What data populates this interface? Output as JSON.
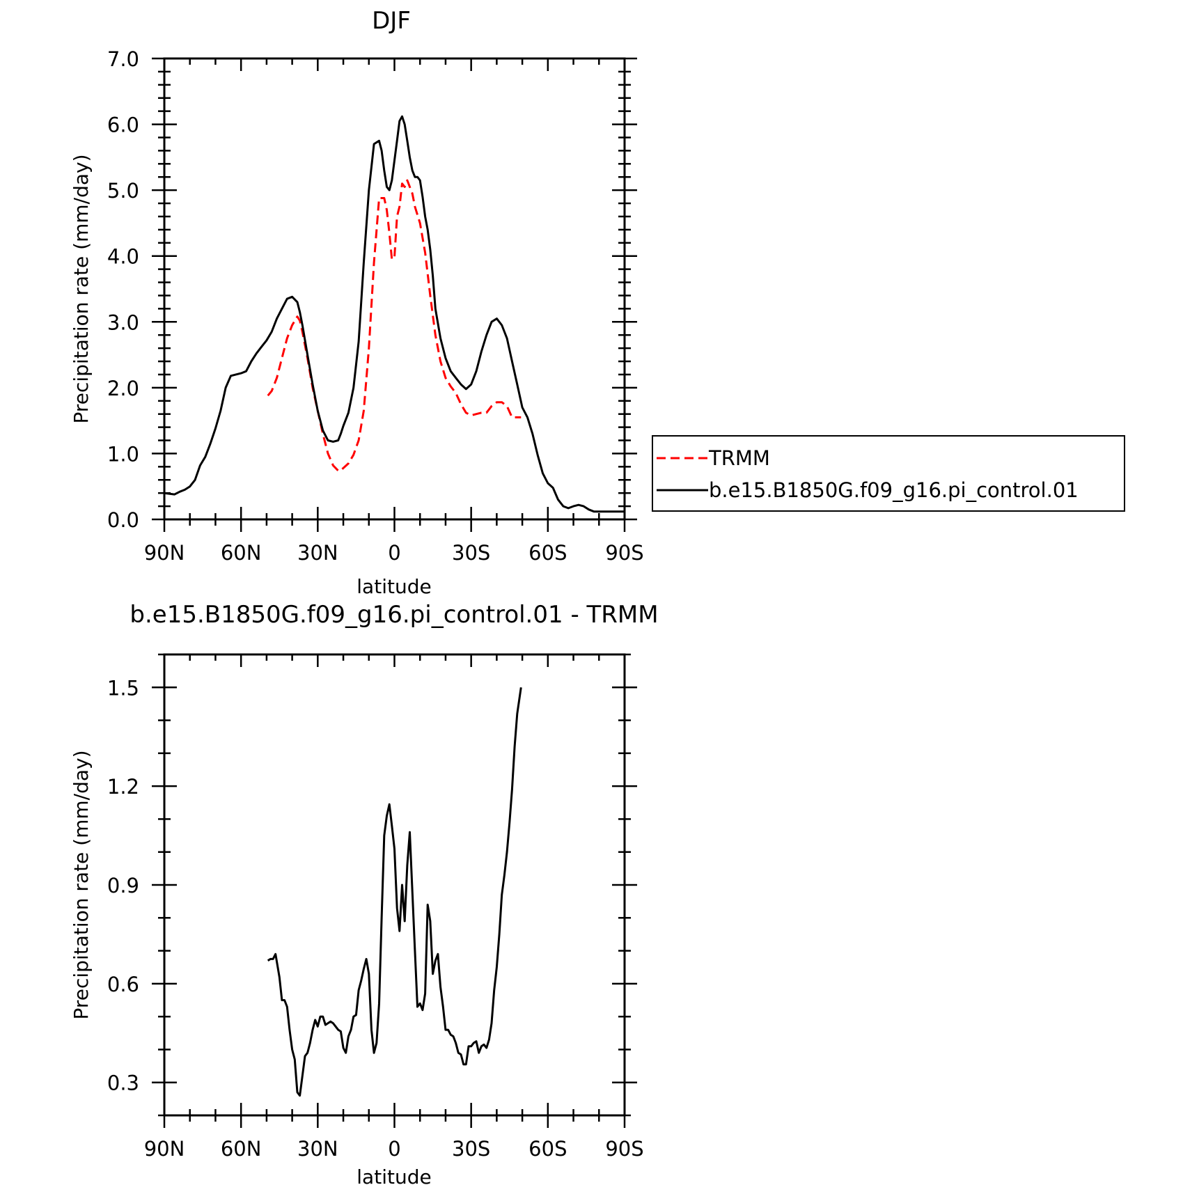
{
  "chart_data": [
    {
      "type": "line",
      "title": "DJF",
      "xlabel": "latitude",
      "ylabel": "Precipitation rate (mm/day)",
      "xlim": [
        90,
        -90
      ],
      "ylim": [
        0,
        7
      ],
      "x_ticks": [
        90,
        60,
        30,
        0,
        -30,
        -60,
        -90
      ],
      "x_tick_labels": [
        "90N",
        "60N",
        "30N",
        "0",
        "30S",
        "60S",
        "90S"
      ],
      "y_ticks": [
        0,
        1,
        2,
        3,
        4,
        5,
        6,
        7
      ],
      "y_tick_labels": [
        "0.0",
        "1.0",
        "2.0",
        "3.0",
        "4.0",
        "5.0",
        "6.0",
        "7.0"
      ],
      "grid": false,
      "legend": "right",
      "series": [
        {
          "name": "TRMM",
          "color": "#ff0000",
          "dash": "dashed",
          "x": [
            49.5,
            48,
            46,
            44,
            42,
            40,
            38,
            37,
            36,
            34,
            32,
            30,
            28,
            26,
            24,
            22,
            21,
            20,
            18,
            16,
            14,
            12,
            10,
            8,
            6,
            4,
            3,
            2,
            1,
            0,
            -1,
            -2,
            -3,
            -4,
            -5,
            -6,
            -7,
            -8,
            -10,
            -12,
            -14,
            -16,
            -18,
            -20,
            -22,
            -24,
            -26,
            -28,
            -30,
            -32,
            -34,
            -36,
            -38,
            -40,
            -42,
            -44,
            -46,
            -48,
            -49.5
          ],
          "y": [
            1.88,
            1.95,
            2.15,
            2.45,
            2.75,
            2.95,
            3.08,
            3.02,
            2.85,
            2.45,
            2.0,
            1.65,
            1.3,
            1.0,
            0.82,
            0.74,
            0.74,
            0.78,
            0.85,
            0.98,
            1.2,
            1.65,
            2.6,
            3.9,
            4.88,
            4.88,
            4.7,
            4.35,
            3.95,
            3.98,
            4.6,
            4.75,
            5.1,
            5.05,
            5.15,
            5.05,
            4.95,
            4.75,
            4.5,
            4.05,
            3.4,
            2.8,
            2.4,
            2.15,
            2.02,
            1.92,
            1.75,
            1.62,
            1.58,
            1.6,
            1.62,
            1.62,
            1.72,
            1.78,
            1.78,
            1.72,
            1.55,
            1.55,
            1.55
          ]
        },
        {
          "name": "b.e15.B1850G.f09_g16.pi_control.01",
          "color": "#000000",
          "dash": "solid",
          "x": [
            90,
            86,
            84,
            82,
            80,
            78,
            76,
            74,
            72,
            70,
            68,
            66,
            64,
            62,
            60,
            58,
            56,
            54,
            52,
            50,
            48,
            46,
            44,
            42,
            40,
            38,
            37,
            36,
            34,
            32,
            30,
            28,
            26,
            24,
            22,
            21,
            20,
            18,
            16,
            14,
            12,
            10,
            8,
            6,
            5,
            4,
            3,
            2,
            1,
            0,
            -1,
            -2,
            -3,
            -4,
            -5,
            -6,
            -7,
            -8,
            -9,
            -10,
            -11,
            -12,
            -13,
            -14,
            -15,
            -16,
            -18,
            -20,
            -22,
            -24,
            -26,
            -28,
            -30,
            -32,
            -34,
            -36,
            -38,
            -40,
            -42,
            -44,
            -46,
            -48,
            -50,
            -52,
            -54,
            -56,
            -58,
            -60,
            -62,
            -64,
            -66,
            -68,
            -70,
            -72,
            -74,
            -76,
            -78,
            -80,
            -82,
            -84,
            -86,
            -88,
            -90
          ],
          "y": [
            0.4,
            0.38,
            0.42,
            0.45,
            0.5,
            0.6,
            0.82,
            0.95,
            1.15,
            1.38,
            1.65,
            2.0,
            2.18,
            2.2,
            2.22,
            2.25,
            2.4,
            2.52,
            2.62,
            2.72,
            2.85,
            3.05,
            3.2,
            3.35,
            3.38,
            3.3,
            3.15,
            2.95,
            2.5,
            2.05,
            1.65,
            1.35,
            1.2,
            1.18,
            1.2,
            1.3,
            1.42,
            1.62,
            2.0,
            2.7,
            3.9,
            5.0,
            5.7,
            5.75,
            5.6,
            5.3,
            5.05,
            5.0,
            5.15,
            5.45,
            5.75,
            6.05,
            6.12,
            6.0,
            5.75,
            5.5,
            5.3,
            5.2,
            5.2,
            5.15,
            4.9,
            4.6,
            4.4,
            4.1,
            3.7,
            3.2,
            2.75,
            2.45,
            2.25,
            2.15,
            2.05,
            1.98,
            2.05,
            2.25,
            2.55,
            2.8,
            3.0,
            3.05,
            2.95,
            2.75,
            2.4,
            2.05,
            1.7,
            1.55,
            1.3,
            0.98,
            0.7,
            0.55,
            0.48,
            0.3,
            0.2,
            0.17,
            0.2,
            0.22,
            0.2,
            0.15,
            0.12,
            0.12,
            0.12,
            0.12,
            0.12,
            0.12,
            0.12
          ]
        }
      ]
    },
    {
      "type": "line",
      "title": "b.e15.B1850G.f09_g16.pi_control.01 - TRMM",
      "xlabel": "latitude",
      "ylabel": "Precipitation rate (mm/day)",
      "xlim": [
        90,
        -90
      ],
      "ylim": [
        0.2,
        1.6
      ],
      "x_ticks": [
        90,
        60,
        30,
        0,
        -30,
        -60,
        -90
      ],
      "x_tick_labels": [
        "90N",
        "60N",
        "30N",
        "0",
        "30S",
        "60S",
        "90S"
      ],
      "y_ticks": [
        0.3,
        0.6,
        0.9,
        1.2,
        1.5
      ],
      "y_tick_labels": [
        "0.3",
        "0.6",
        "0.9",
        "1.2",
        "1.5"
      ],
      "grid": false,
      "legend": "none",
      "series": [
        {
          "color": "#000000",
          "dash": "solid",
          "x": [
            49.5,
            48.5,
            47.5,
            46.5,
            45,
            44,
            43,
            42,
            41,
            40,
            39,
            38,
            37,
            36,
            35,
            34,
            33,
            32,
            31,
            30,
            29,
            28,
            27,
            26,
            25,
            24,
            23,
            22,
            21,
            20,
            19,
            18,
            17,
            16,
            15,
            14,
            13,
            12,
            11,
            10,
            9,
            8,
            7,
            6,
            5,
            4,
            3,
            2,
            1,
            0,
            -1,
            -2,
            -3,
            -4,
            -5,
            -6,
            -7,
            -8,
            -9,
            -10,
            -11,
            -12,
            -13,
            -14,
            -15,
            -16,
            -17,
            -18,
            -19,
            -20,
            -21,
            -22,
            -23,
            -24,
            -25,
            -26,
            -27,
            -28,
            -29,
            -30,
            -31,
            -32,
            -33,
            -34,
            -35,
            -36,
            -37,
            -38,
            -39,
            -40,
            -41,
            -42,
            -43,
            -44,
            -45,
            -46,
            -47,
            -48,
            -49.5
          ],
          "y": [
            0.67,
            0.675,
            0.675,
            0.69,
            0.62,
            0.55,
            0.55,
            0.53,
            0.46,
            0.4,
            0.37,
            0.27,
            0.26,
            0.32,
            0.38,
            0.39,
            0.42,
            0.46,
            0.49,
            0.47,
            0.5,
            0.5,
            0.475,
            0.48,
            0.485,
            0.48,
            0.47,
            0.46,
            0.455,
            0.405,
            0.39,
            0.44,
            0.46,
            0.5,
            0.505,
            0.58,
            0.61,
            0.645,
            0.675,
            0.63,
            0.46,
            0.39,
            0.42,
            0.54,
            0.8,
            1.05,
            1.11,
            1.145,
            1.08,
            1.01,
            0.83,
            0.76,
            0.9,
            0.79,
            0.96,
            1.06,
            0.88,
            0.7,
            0.53,
            0.54,
            0.52,
            0.57,
            0.84,
            0.79,
            0.63,
            0.67,
            0.69,
            0.59,
            0.53,
            0.46,
            0.46,
            0.445,
            0.44,
            0.42,
            0.39,
            0.385,
            0.355,
            0.355,
            0.41,
            0.41,
            0.42,
            0.425,
            0.39,
            0.41,
            0.415,
            0.405,
            0.43,
            0.48,
            0.58,
            0.65,
            0.75,
            0.87,
            0.93,
            1.0,
            1.09,
            1.19,
            1.32,
            1.42,
            1.5
          ]
        }
      ]
    }
  ]
}
